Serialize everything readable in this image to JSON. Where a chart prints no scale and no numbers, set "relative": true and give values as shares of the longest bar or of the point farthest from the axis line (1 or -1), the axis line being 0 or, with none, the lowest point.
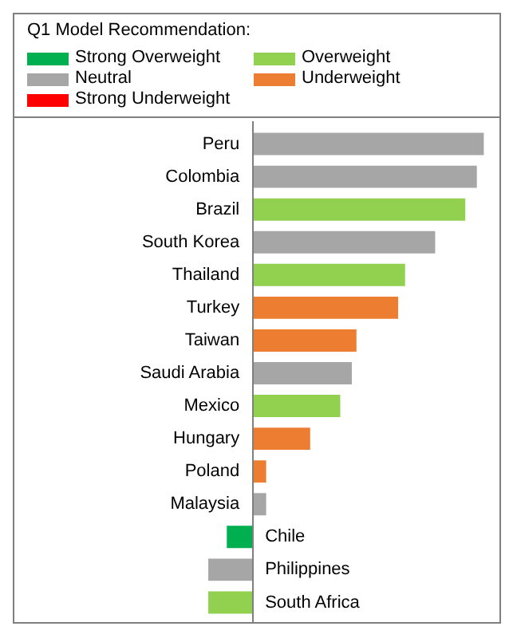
{
  "chart_data": {
    "type": "bar",
    "orientation": "horizontal",
    "relative": true,
    "legend_title": "Q1 Model Recommendation:",
    "legend": "top",
    "categories": [
      "Peru",
      "Colombia",
      "Brazil",
      "South Korea",
      "Thailand",
      "Turkey",
      "Taiwan",
      "Saudi Arabia",
      "Mexico",
      "Hungary",
      "Poland",
      "Malaysia",
      "Chile",
      "Philippines",
      "South Africa"
    ],
    "series": [
      {
        "name": "Strong Overweight",
        "color": "#00b050",
        "values": [
          null,
          null,
          null,
          null,
          null,
          null,
          null,
          null,
          null,
          null,
          null,
          null,
          -0.11,
          null,
          null
        ]
      },
      {
        "name": "Neutral",
        "color": "#a6a6a6",
        "values": [
          1,
          0.97,
          null,
          0.79,
          null,
          null,
          null,
          0.43,
          null,
          null,
          null,
          0.06,
          null,
          -0.19,
          null
        ]
      },
      {
        "name": "Strong Underweight",
        "color": "#ff0000",
        "values": [
          null,
          null,
          null,
          null,
          null,
          null,
          null,
          null,
          null,
          null,
          null,
          null,
          null,
          null,
          null
        ]
      },
      {
        "name": "Overweight",
        "color": "#92d050",
        "values": [
          null,
          null,
          0.92,
          null,
          0.66,
          null,
          null,
          null,
          0.38,
          null,
          null,
          null,
          null,
          null,
          -0.19
        ]
      },
      {
        "name": "Underweight",
        "color": "#ed7d31",
        "values": [
          null,
          null,
          null,
          null,
          null,
          0.63,
          0.45,
          null,
          null,
          0.25,
          0.06,
          null,
          null,
          null,
          null
        ]
      }
    ]
  }
}
